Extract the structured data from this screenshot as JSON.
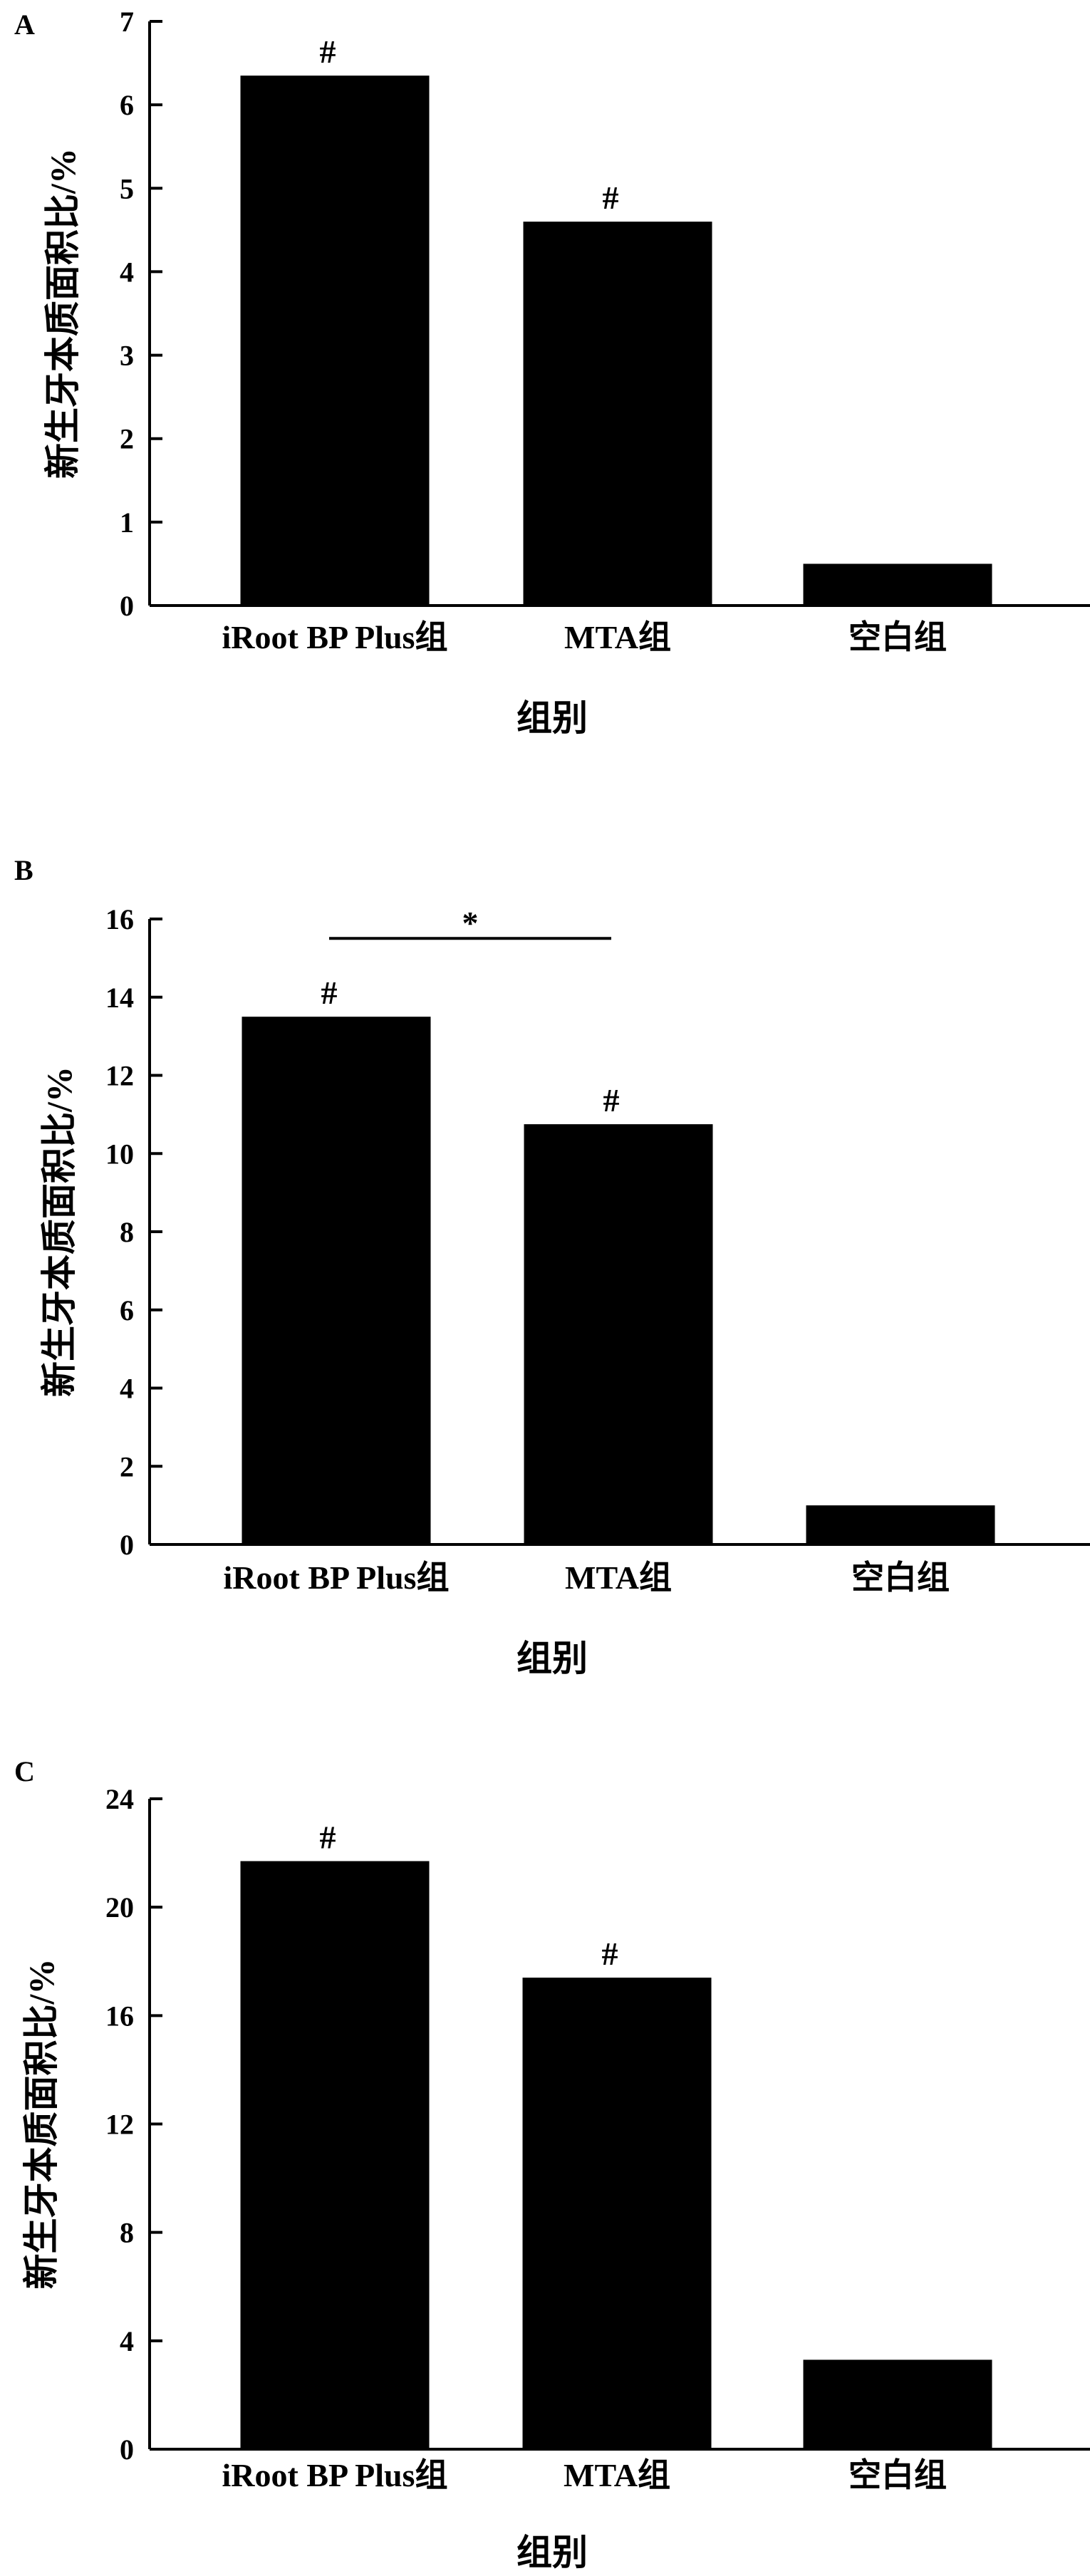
{
  "chart_data": [
    {
      "type": "bar",
      "panel": "A",
      "categories": [
        "iRoot BP Plus组",
        "MTA组",
        "空白组"
      ],
      "values": [
        6.35,
        4.6,
        0.5
      ],
      "xlabel": "组别",
      "ylabel": "新生牙本质面积比/%",
      "ylim": [
        0,
        7
      ],
      "yticks": [
        0,
        1,
        2,
        3,
        4,
        5,
        6,
        7
      ],
      "bar_marks": [
        "#",
        "#",
        ""
      ],
      "significance": []
    },
    {
      "type": "bar",
      "panel": "B",
      "categories": [
        "iRoot BP Plus组",
        "MTA组",
        "空白组"
      ],
      "values": [
        13.5,
        10.75,
        1.0
      ],
      "xlabel": "组别",
      "ylabel": "新生牙本质面积比/%",
      "ylim": [
        0,
        16
      ],
      "yticks": [
        0,
        2,
        4,
        6,
        8,
        10,
        12,
        14,
        16
      ],
      "bar_marks": [
        "#",
        "#",
        ""
      ],
      "significance": [
        {
          "from": 0,
          "to": 1,
          "label": "*"
        }
      ]
    },
    {
      "type": "bar",
      "panel": "C",
      "categories": [
        "iRoot BP Plus组",
        "MTA组",
        "空白组"
      ],
      "values": [
        21.7,
        17.4,
        3.3
      ],
      "xlabel": "组别",
      "ylabel": "新生牙本质面积比/%",
      "ylim": [
        0,
        24
      ],
      "yticks": [
        0,
        4,
        8,
        12,
        16,
        20,
        24
      ],
      "bar_marks": [
        "#",
        "#",
        ""
      ],
      "significance": []
    }
  ],
  "colors": {
    "bar": "#000000",
    "axis": "#000000"
  }
}
